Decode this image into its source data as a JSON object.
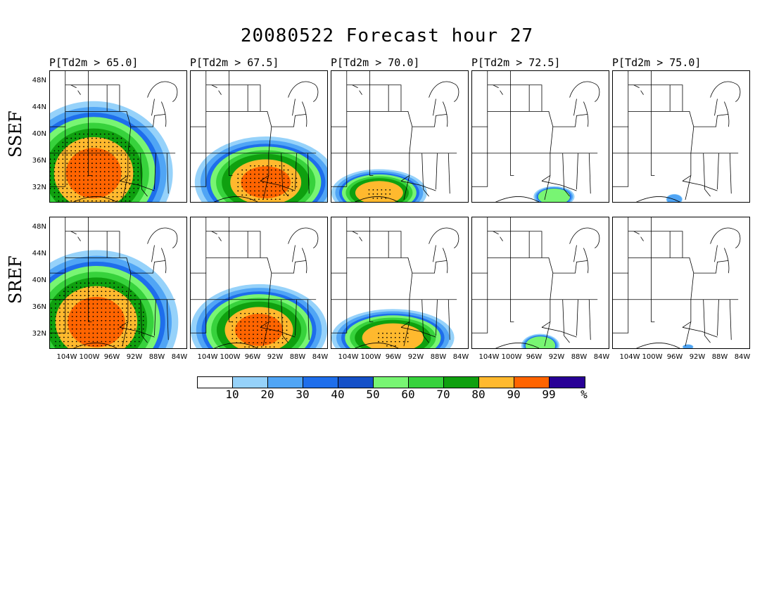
{
  "title": "20080522 Forecast hour 27",
  "column_titles": [
    "P[Td2m > 65.0]",
    "P[Td2m > 67.5]",
    "P[Td2m > 70.0]",
    "P[Td2m > 72.5]",
    "P[Td2m > 75.0]"
  ],
  "row_labels": [
    "SSEF",
    "SREF"
  ],
  "lat_labels": [
    "48N",
    "44N",
    "40N",
    "36N",
    "32N"
  ],
  "lon_labels": [
    "104W",
    "100W",
    "96W",
    "92W",
    "88W",
    "84W"
  ],
  "colorbar": {
    "colors": [
      "#ffffff",
      "#96d2fa",
      "#50a5f5",
      "#1e6eeb",
      "#1450c8",
      "#78f573",
      "#37d23c",
      "#0fa00f",
      "#ffb92e",
      "#ff6400",
      "#280096"
    ],
    "labels": [
      "10",
      "20",
      "30",
      "40",
      "50",
      "60",
      "70",
      "80",
      "90",
      "99",
      "%"
    ]
  },
  "shading": {
    "SSEF": [
      {
        "c": [
          0.32,
          0.78
        ],
        "rx": 0.58,
        "ry": 0.55,
        "ry_extent": 1.0
      },
      {
        "c": [
          0.55,
          0.85
        ],
        "rx": 0.52,
        "ry": 0.35
      },
      {
        "c": [
          0.35,
          0.93
        ],
        "rx": 0.35,
        "ry": 0.18
      },
      {
        "c": [
          0.6,
          0.96
        ],
        "rx": 0.15,
        "ry": 0.08
      },
      {
        "c": [
          0.45,
          0.98
        ],
        "rx": 0.06,
        "ry": 0.04
      }
    ],
    "SREF": [
      {
        "c": [
          0.34,
          0.8
        ],
        "rx": 0.6,
        "ry": 0.55
      },
      {
        "c": [
          0.5,
          0.86
        ],
        "rx": 0.5,
        "ry": 0.35
      },
      {
        "c": [
          0.45,
          0.92
        ],
        "rx": 0.45,
        "ry": 0.22
      },
      {
        "c": [
          0.5,
          0.98
        ],
        "rx": 0.14,
        "ry": 0.09
      },
      {
        "c": [
          0.55,
          0.99
        ],
        "rx": 0.04,
        "ry": 0.02
      }
    ]
  }
}
